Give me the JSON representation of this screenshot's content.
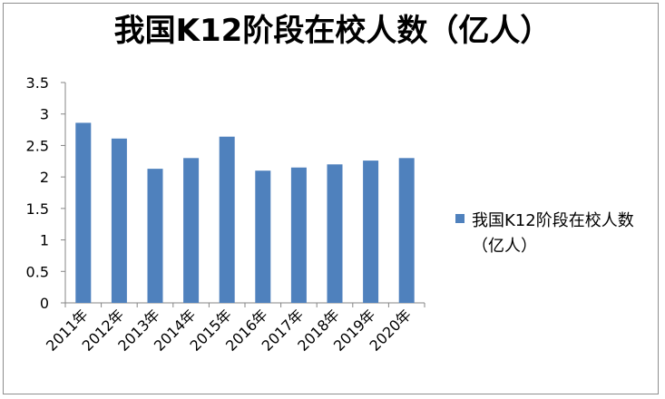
{
  "chart_data": {
    "type": "bar",
    "title": "我国K12阶段在校人数（亿人）",
    "categories": [
      "2011年",
      "2012年",
      "2013年",
      "2014年",
      "2015年",
      "2016年",
      "2017年",
      "2018年",
      "2019年",
      "2020年"
    ],
    "series": [
      {
        "name": "我国K12阶段在校人数（亿人）",
        "values": [
          2.86,
          2.61,
          2.13,
          2.3,
          2.64,
          2.1,
          2.15,
          2.2,
          2.26,
          2.3
        ]
      }
    ],
    "yticks": [
      "0",
      "0.5",
      "1",
      "1.5",
      "2",
      "2.5",
      "3",
      "3.5"
    ],
    "ylim": [
      0,
      3.5
    ],
    "xlabel": "",
    "ylabel": "",
    "grid": false,
    "legend_position": "right",
    "bar_color": "#4f81bd",
    "axis_color": "#868686"
  }
}
